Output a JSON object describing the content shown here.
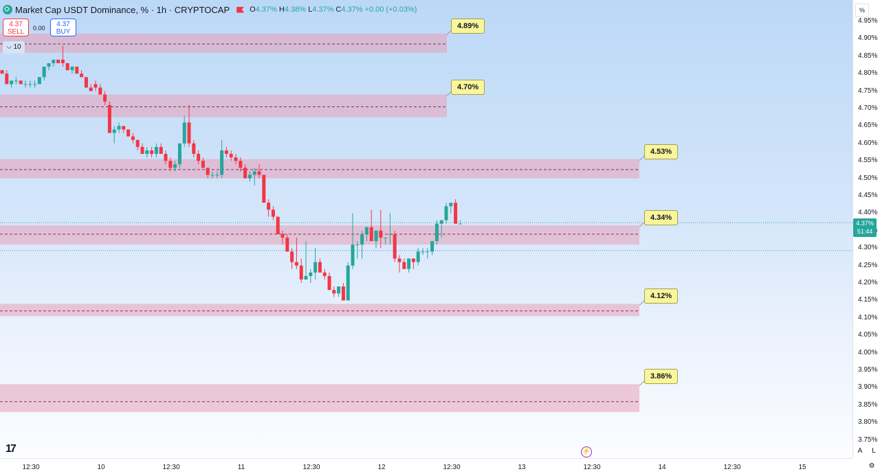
{
  "legend": {
    "title": "Market Cap USDT Dominance, %",
    "interval": "1h",
    "source": "CRYPTOCAP",
    "open_label": "O",
    "open": "4.37%",
    "high_label": "H",
    "high": "4.38%",
    "low_label": "L",
    "low": "4.37%",
    "close_label": "C",
    "close": "4.37%",
    "change": "+0.00 (+0.03%)"
  },
  "trade": {
    "sell_price": "4.37",
    "sell_label": "SELL",
    "spread": "0.00",
    "buy_price": "4.37",
    "buy_label": "BUY"
  },
  "indicator_toggle": "10",
  "percent_button": "%",
  "current_price": {
    "value": "4.37%",
    "countdown": "51:44"
  },
  "axis_buttons": {
    "auto": "A",
    "log": "L"
  },
  "colors": {
    "up": "#26a69a",
    "down": "#f23645",
    "zone": "#e8a0b8",
    "label_bg": "#f9f59b"
  },
  "icons": [
    "tradingview-logo-icon",
    "lightning-icon",
    "settings-icon",
    "chevron-down-icon",
    "flag-icon"
  ],
  "chart_data": {
    "type": "candlestick",
    "title": "Market Cap USDT Dominance, % · 1h · CRYPTOCAP",
    "ylim": [
      3.75,
      4.98
    ],
    "y_unit": "%",
    "y_ticks": [
      "4.95%",
      "4.90%",
      "4.85%",
      "4.80%",
      "4.75%",
      "4.70%",
      "4.65%",
      "4.60%",
      "4.55%",
      "4.50%",
      "4.45%",
      "4.40%",
      "4.35%",
      "4.30%",
      "4.25%",
      "4.20%",
      "4.15%",
      "4.10%",
      "4.05%",
      "4.00%",
      "3.95%",
      "3.90%",
      "3.85%",
      "3.80%",
      "3.75%"
    ],
    "x_ticks": [
      "12:30",
      "10",
      "12:30",
      "11",
      "12:30",
      "12",
      "12:30",
      "13",
      "12:30",
      "14",
      "12:30",
      "15"
    ],
    "levels": [
      {
        "label": "4.89%",
        "value": 4.885,
        "low": 4.86,
        "high": 4.915
      },
      {
        "label": "4.70%",
        "value": 4.705,
        "low": 4.675,
        "high": 4.74
      },
      {
        "label": "4.53%",
        "value": 4.525,
        "low": 4.5,
        "high": 4.555
      },
      {
        "label": "4.34%",
        "value": 4.34,
        "low": 4.31,
        "high": 4.365
      },
      {
        "label": "4.12%",
        "value": 4.12,
        "low": 4.105,
        "high": 4.14
      },
      {
        "label": "3.86%",
        "value": 3.86,
        "low": 3.83,
        "high": 3.91
      }
    ],
    "candles": [
      [
        4.81,
        4.81,
        4.8,
        4.8
      ],
      [
        4.8,
        4.81,
        4.77,
        4.77
      ],
      [
        4.77,
        4.78,
        4.76,
        4.78
      ],
      [
        4.78,
        4.79,
        4.77,
        4.78
      ],
      [
        4.78,
        4.78,
        4.77,
        4.77
      ],
      [
        4.77,
        4.78,
        4.76,
        4.77
      ],
      [
        4.77,
        4.78,
        4.76,
        4.77
      ],
      [
        4.77,
        4.78,
        4.76,
        4.77
      ],
      [
        4.77,
        4.79,
        4.77,
        4.79
      ],
      [
        4.79,
        4.82,
        4.78,
        4.82
      ],
      [
        4.82,
        4.83,
        4.81,
        4.83
      ],
      [
        4.83,
        4.84,
        4.82,
        4.84
      ],
      [
        4.84,
        4.84,
        4.83,
        4.83
      ],
      [
        4.84,
        4.88,
        4.82,
        4.83
      ],
      [
        4.83,
        4.83,
        4.81,
        4.81
      ],
      [
        4.81,
        4.82,
        4.8,
        4.82
      ],
      [
        4.82,
        4.82,
        4.8,
        4.8
      ],
      [
        4.8,
        4.81,
        4.79,
        4.79
      ],
      [
        4.79,
        4.79,
        4.76,
        4.76
      ],
      [
        4.76,
        4.77,
        4.75,
        4.75
      ],
      [
        4.77,
        4.78,
        4.75,
        4.76
      ],
      [
        4.76,
        4.77,
        4.74,
        4.74
      ],
      [
        4.74,
        4.75,
        4.71,
        4.72
      ],
      [
        4.71,
        4.72,
        4.63,
        4.63
      ],
      [
        4.63,
        4.65,
        4.6,
        4.64
      ],
      [
        4.64,
        4.66,
        4.63,
        4.65
      ],
      [
        4.65,
        4.65,
        4.63,
        4.64
      ],
      [
        4.64,
        4.64,
        4.62,
        4.62
      ],
      [
        4.62,
        4.63,
        4.6,
        4.61
      ],
      [
        4.61,
        4.61,
        4.58,
        4.59
      ],
      [
        4.59,
        4.6,
        4.57,
        4.57
      ],
      [
        4.57,
        4.59,
        4.56,
        4.58
      ],
      [
        4.58,
        4.59,
        4.56,
        4.57
      ],
      [
        4.57,
        4.6,
        4.56,
        4.59
      ],
      [
        4.59,
        4.6,
        4.57,
        4.57
      ],
      [
        4.57,
        4.58,
        4.54,
        4.55
      ],
      [
        4.55,
        4.56,
        4.52,
        4.53
      ],
      [
        4.53,
        4.55,
        4.52,
        4.54
      ],
      [
        4.54,
        4.6,
        4.53,
        4.6
      ],
      [
        4.6,
        4.68,
        4.59,
        4.66
      ],
      [
        4.66,
        4.71,
        4.59,
        4.6
      ],
      [
        4.6,
        4.61,
        4.56,
        4.57
      ],
      [
        4.57,
        4.58,
        4.54,
        4.55
      ],
      [
        4.55,
        4.56,
        4.53,
        4.53
      ],
      [
        4.53,
        4.53,
        4.5,
        4.51
      ],
      [
        4.51,
        4.52,
        4.5,
        4.51
      ],
      [
        4.51,
        4.52,
        4.5,
        4.51
      ],
      [
        4.51,
        4.61,
        4.5,
        4.58
      ],
      [
        4.58,
        4.59,
        4.56,
        4.57
      ],
      [
        4.57,
        4.58,
        4.55,
        4.56
      ],
      [
        4.56,
        4.57,
        4.54,
        4.55
      ],
      [
        4.55,
        4.56,
        4.52,
        4.53
      ],
      [
        4.53,
        4.54,
        4.5,
        4.5
      ],
      [
        4.5,
        4.52,
        4.49,
        4.51
      ],
      [
        4.51,
        4.53,
        4.48,
        4.52
      ],
      [
        4.52,
        4.54,
        4.5,
        4.51
      ],
      [
        4.51,
        4.51,
        4.43,
        4.43
      ],
      [
        4.43,
        4.44,
        4.39,
        4.41
      ],
      [
        4.41,
        4.42,
        4.38,
        4.39
      ],
      [
        4.39,
        4.39,
        4.34,
        4.34
      ],
      [
        4.34,
        4.35,
        4.31,
        4.33
      ],
      [
        4.33,
        4.34,
        4.29,
        4.29
      ],
      [
        4.29,
        4.3,
        4.24,
        4.26
      ],
      [
        4.26,
        4.33,
        4.24,
        4.25
      ],
      [
        4.25,
        4.27,
        4.2,
        4.21
      ],
      [
        4.21,
        4.32,
        4.21,
        4.22
      ],
      [
        4.22,
        4.24,
        4.2,
        4.23
      ],
      [
        4.23,
        4.3,
        4.21,
        4.26
      ],
      [
        4.26,
        4.27,
        4.23,
        4.23
      ],
      [
        4.23,
        4.24,
        4.21,
        4.22
      ],
      [
        4.22,
        4.23,
        4.18,
        4.18
      ],
      [
        4.18,
        4.19,
        4.16,
        4.17
      ],
      [
        4.17,
        4.19,
        4.16,
        4.19
      ],
      [
        4.19,
        4.2,
        4.15,
        4.15
      ],
      [
        4.15,
        4.26,
        4.15,
        4.25
      ],
      [
        4.25,
        4.4,
        4.24,
        4.31
      ],
      [
        4.31,
        4.32,
        4.27,
        4.31
      ],
      [
        4.31,
        4.35,
        4.27,
        4.34
      ],
      [
        4.34,
        4.36,
        4.32,
        4.36
      ],
      [
        4.36,
        4.41,
        4.32,
        4.32
      ],
      [
        4.32,
        4.35,
        4.3,
        4.35
      ],
      [
        4.35,
        4.41,
        4.3,
        4.33
      ],
      [
        4.33,
        4.33,
        4.31,
        4.33
      ],
      [
        4.34,
        4.4,
        4.31,
        4.34
      ],
      [
        4.34,
        4.35,
        4.26,
        4.27
      ],
      [
        4.27,
        4.28,
        4.23,
        4.26
      ],
      [
        4.26,
        4.27,
        4.24,
        4.24
      ],
      [
        4.24,
        4.27,
        4.23,
        4.27
      ],
      [
        4.27,
        4.27,
        4.24,
        4.26
      ],
      [
        4.26,
        4.3,
        4.25,
        4.29
      ],
      [
        4.29,
        4.3,
        4.28,
        4.29
      ],
      [
        4.29,
        4.3,
        4.27,
        4.29
      ],
      [
        4.29,
        4.32,
        4.28,
        4.32
      ],
      [
        4.32,
        4.38,
        4.31,
        4.37
      ],
      [
        4.37,
        4.38,
        4.33,
        4.38
      ],
      [
        4.38,
        4.43,
        4.37,
        4.42
      ],
      [
        4.42,
        4.43,
        4.4,
        4.43
      ],
      [
        4.43,
        4.44,
        4.37,
        4.37
      ],
      [
        4.37,
        4.38,
        4.37,
        4.37
      ]
    ]
  }
}
